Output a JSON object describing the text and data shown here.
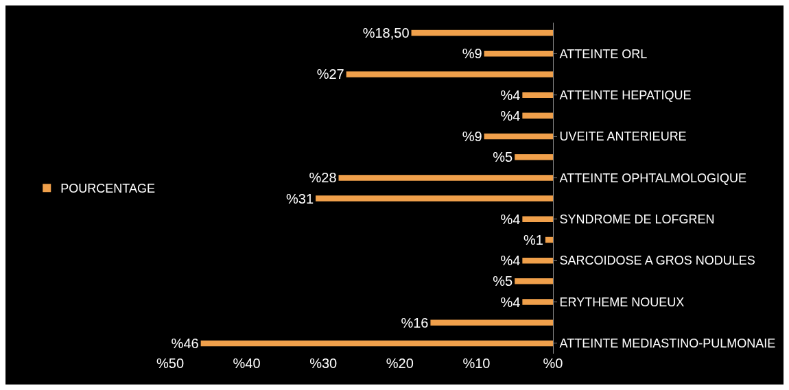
{
  "chart_data": {
    "type": "bar",
    "orientation": "horizontal",
    "categories": [
      null,
      "ATTEINTE ORL",
      null,
      "ATTEINTE HEPATIQUE",
      null,
      "UVEITE ANTERIEURE",
      null,
      "ATTEINTE OPHTALMOLOGIQUE",
      null,
      "SYNDROME DE LOFGREN",
      null,
      "SARCOIDOSE A GROS NODULES",
      null,
      "ERYTHEME NOUEUX",
      null,
      "ATTEINTE MEDIASTINO-PULMONAIE"
    ],
    "series": [
      {
        "name": "POURCENTAGE",
        "color": "#f0a04b",
        "values": [
          18.5,
          9,
          27,
          4,
          4,
          9,
          5,
          28,
          31,
          4,
          1,
          4,
          5,
          4,
          16,
          46
        ],
        "value_labels": [
          "%18,50",
          "%9",
          "%27",
          "%4",
          "%4",
          "%9",
          "%5",
          "%28",
          "%31",
          "%4",
          "%1",
          "%4",
          "%5",
          "%4",
          "%16",
          "%46"
        ]
      }
    ],
    "xlim": [
      50,
      0
    ],
    "xticks": [
      {
        "value": 50,
        "label": "%50"
      },
      {
        "value": 40,
        "label": "%40"
      },
      {
        "value": 30,
        "label": "%30"
      },
      {
        "value": 20,
        "label": "%20"
      },
      {
        "value": 10,
        "label": "%10"
      },
      {
        "value": 0,
        "label": "%0"
      }
    ],
    "grid": false,
    "legend": "left"
  }
}
